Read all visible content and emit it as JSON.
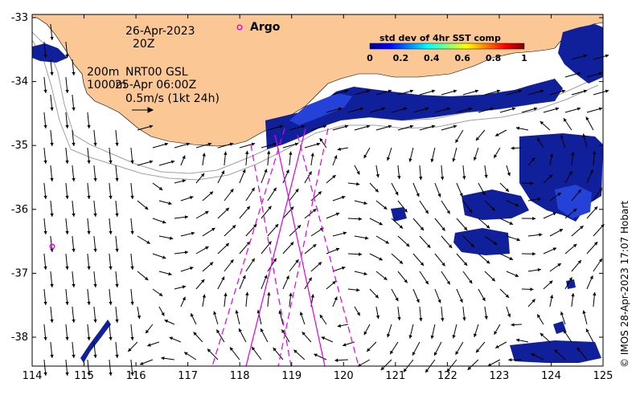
{
  "map": {
    "date_label": "26-Apr-2023",
    "time_label": "20Z",
    "legend_depth_200": "200m",
    "legend_depth_1000": "1000m",
    "product_label": "NRT00 GSL",
    "product_time_label": "25-Apr 06:00Z",
    "scale_label": "0.5m/s (1kt 24h)",
    "argo_label": "Argo",
    "credit": "© IMOS 28-Apr-2023 17:07 Hobart"
  },
  "colorbar": {
    "title": "std dev of 4hr SST comp",
    "ticks": [
      "0",
      "0.2",
      "0.4",
      "0.6",
      "0.8",
      "1"
    ]
  },
  "axes": {
    "x_ticks": [
      "114",
      "115",
      "116",
      "117",
      "118",
      "119",
      "120",
      "121",
      "122",
      "123",
      "124",
      "125"
    ],
    "y_ticks": [
      "-33",
      "-34",
      "-35",
      "-36",
      "-37",
      "-38"
    ]
  },
  "colors": {
    "land": "#fbc895",
    "sst_dark": "#10209a",
    "sst_mid": "#2442d8",
    "track": "#e000e0",
    "isobath": "#a0a0a0"
  }
}
